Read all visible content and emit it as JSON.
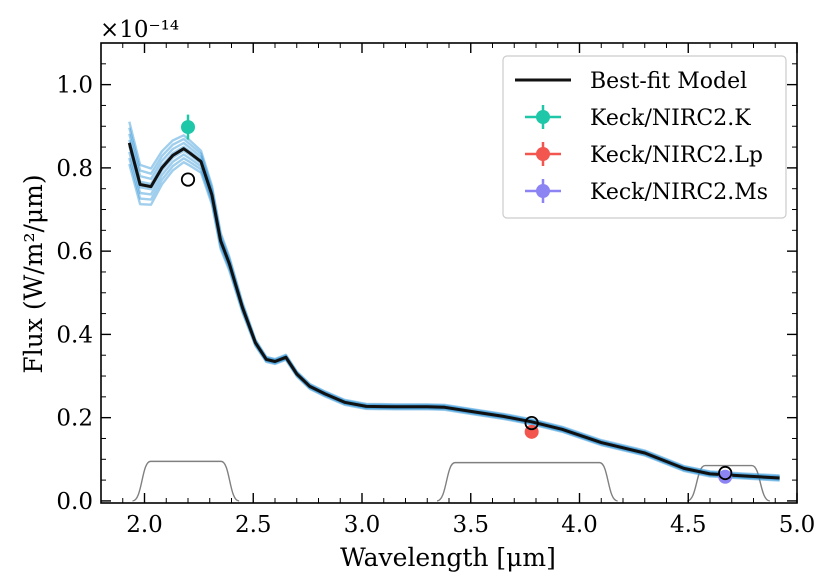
{
  "chart_data": {
    "type": "line",
    "title": "",
    "offset_text": "×10⁻¹⁴",
    "xlabel": "Wavelength [μm]",
    "ylabel": "Flux (W/m²/μm)",
    "xlim": [
      1.8,
      5.0
    ],
    "ylim": [
      -0.005,
      1.1
    ],
    "xticks": [
      2.0,
      2.5,
      3.0,
      3.5,
      4.0,
      4.5,
      5.0
    ],
    "xtick_labels": [
      "2.0",
      "2.5",
      "3.0",
      "3.5",
      "4.0",
      "4.5",
      "5.0"
    ],
    "yticks": [
      0.0,
      0.2,
      0.4,
      0.6,
      0.8,
      1.0
    ],
    "ytick_labels": [
      "0.0",
      "0.2",
      "0.4",
      "0.6",
      "0.8",
      "1.0"
    ],
    "legend_position": "top-right",
    "colors": {
      "model": "#111111",
      "samples": "#2d93d6",
      "filters": "#808080",
      "k": "#1ec7a8",
      "lp": "#f2564e",
      "ms": "#8b84f2"
    },
    "series": [
      {
        "name": "Best-fit Model",
        "x": [
          1.93,
          1.98,
          2.03,
          2.08,
          2.13,
          2.18,
          2.21,
          2.26,
          2.31,
          2.35,
          2.39,
          2.45,
          2.51,
          2.56,
          2.6,
          2.65,
          2.7,
          2.76,
          2.83,
          2.92,
          3.02,
          3.15,
          3.3,
          3.38,
          3.5,
          3.65,
          3.78,
          3.92,
          4.1,
          4.3,
          4.48,
          4.6,
          4.75,
          4.92
        ],
        "y": [
          0.86,
          0.76,
          0.755,
          0.8,
          0.83,
          0.846,
          0.835,
          0.815,
          0.735,
          0.625,
          0.57,
          0.465,
          0.38,
          0.34,
          0.335,
          0.345,
          0.305,
          0.275,
          0.257,
          0.237,
          0.227,
          0.226,
          0.226,
          0.225,
          0.215,
          0.203,
          0.19,
          0.172,
          0.14,
          0.115,
          0.078,
          0.065,
          0.06,
          0.055
        ]
      }
    ],
    "model_samples": 8,
    "photometry": [
      {
        "name": "Keck/NIRC2.K",
        "x": 2.2,
        "y": 0.898,
        "yerr": 0.03,
        "model_y": 0.772
      },
      {
        "name": "Keck/NIRC2.Lp",
        "x": 3.78,
        "y": 0.166,
        "yerr": 0.006,
        "model_y": 0.187
      },
      {
        "name": "Keck/NIRC2.Ms",
        "x": 4.67,
        "y": 0.058,
        "yerr": 0.008,
        "model_y": 0.067
      }
    ],
    "filter_curves": [
      {
        "name": "Keck/NIRC2.K",
        "start": 2.0,
        "end": 2.38,
        "level": 0.095
      },
      {
        "name": "Keck/NIRC2.Lp",
        "start": 3.4,
        "end": 4.12,
        "level": 0.092
      },
      {
        "name": "Keck/NIRC2.Ms",
        "start": 4.55,
        "end": 4.82,
        "level": 0.085
      }
    ],
    "legend": [
      {
        "label": "Best-fit Model",
        "kind": "line",
        "color_key": "model"
      },
      {
        "label": "Keck/NIRC2.K",
        "kind": "marker",
        "color_key": "k"
      },
      {
        "label": "Keck/NIRC2.Lp",
        "kind": "marker",
        "color_key": "lp"
      },
      {
        "label": "Keck/NIRC2.Ms",
        "kind": "marker",
        "color_key": "ms"
      }
    ]
  }
}
